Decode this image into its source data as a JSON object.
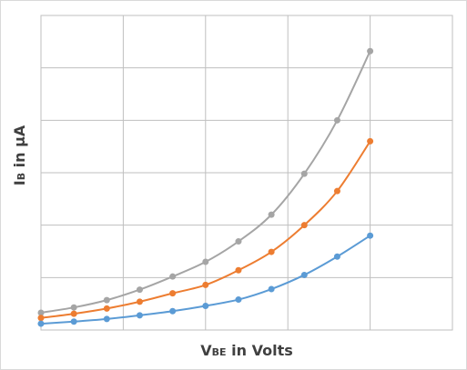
{
  "chart_data": {
    "type": "line",
    "title": "",
    "xlabel": {
      "main": "V",
      "sub": "BE",
      "rest": " in Volts"
    },
    "ylabel": {
      "main": "I",
      "sub": "B",
      "rest": " in μA"
    },
    "x_tick_labels_shown": false,
    "y_tick_labels_shown": false,
    "grid": true,
    "xlim": [
      0,
      5
    ],
    "ylim": [
      0,
      6
    ],
    "x": [
      0,
      0.4,
      0.8,
      1.2,
      1.6,
      2.0,
      2.4,
      2.8,
      3.2,
      3.6,
      4.0
    ],
    "series": [
      {
        "color": "#a5a5a5",
        "values": [
          0.33,
          0.43,
          0.57,
          0.77,
          1.02,
          1.3,
          1.69,
          2.2,
          2.98,
          4.0,
          5.32
        ]
      },
      {
        "color": "#ed7d31",
        "values": [
          0.23,
          0.31,
          0.41,
          0.54,
          0.7,
          0.86,
          1.14,
          1.49,
          2.0,
          2.65,
          3.6
        ]
      },
      {
        "color": "#5b9bd5",
        "values": [
          0.12,
          0.16,
          0.21,
          0.28,
          0.36,
          0.46,
          0.58,
          0.78,
          1.05,
          1.4,
          1.8
        ]
      }
    ]
  }
}
